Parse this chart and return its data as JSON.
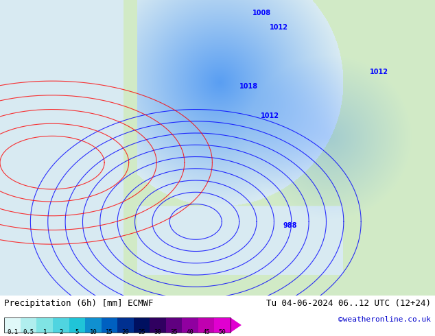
{
  "title_left": "Precipitation (6h) [mm] ECMWF",
  "title_right": "Tu 04-06-2024 06..12 UTC (12+24)",
  "credit": "©weatheronline.co.uk",
  "colorbar_values": [
    0.1,
    0.5,
    1,
    2,
    5,
    10,
    15,
    20,
    25,
    30,
    35,
    40,
    45,
    50
  ],
  "colorbar_colors": [
    "#e0f8f8",
    "#b0eeee",
    "#80e4e4",
    "#50d4e0",
    "#20c4d8",
    "#1090d0",
    "#0060c0",
    "#003090",
    "#001060",
    "#300060",
    "#600080",
    "#9000a0",
    "#c000b0",
    "#e000d0"
  ],
  "bg_color": "#ffffff",
  "map_image_placeholder": true,
  "figsize": [
    6.34,
    4.9
  ],
  "dpi": 100,
  "text_color": "#000000",
  "credit_color": "#0000cc",
  "font_size_title": 9,
  "font_size_labels": 8,
  "font_size_credit": 8
}
